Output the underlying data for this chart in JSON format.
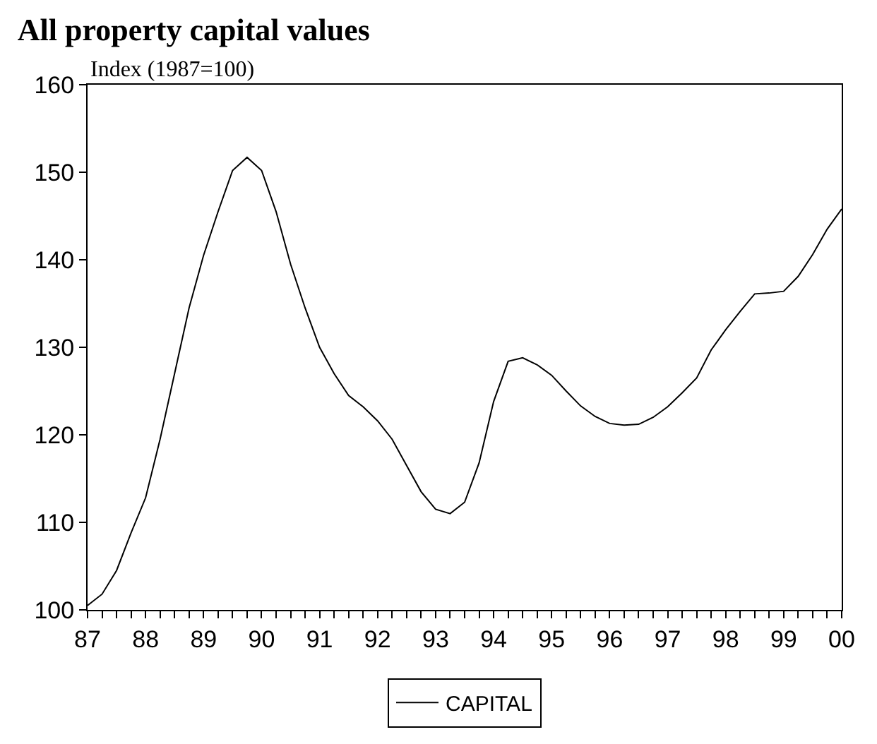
{
  "chart_data": {
    "type": "line",
    "title": "All property capital values",
    "ylabel": "Index (1987=100)",
    "x": [
      1987,
      1987.25,
      1987.5,
      1987.75,
      1988,
      1988.25,
      1988.5,
      1988.75,
      1989,
      1989.25,
      1989.5,
      1989.75,
      1990,
      1990.25,
      1990.5,
      1990.75,
      1991,
      1991.25,
      1991.5,
      1991.75,
      1992,
      1992.25,
      1992.5,
      1992.75,
      1993,
      1993.25,
      1993.5,
      1993.75,
      1994,
      1994.25,
      1994.5,
      1994.75,
      1995,
      1995.25,
      1995.5,
      1995.75,
      1996,
      1996.25,
      1996.5,
      1996.75,
      1997,
      1997.25,
      1997.5,
      1997.75,
      1998,
      1998.25,
      1998.5,
      1998.75,
      1999,
      1999.25,
      1999.5,
      1999.75,
      2000
    ],
    "series": [
      {
        "name": "CAPITAL",
        "color": "#000000",
        "values": [
          100.5,
          101.8,
          104.5,
          108.8,
          112.8,
          119.5,
          127,
          134.5,
          140.5,
          145.5,
          150.2,
          151.7,
          150.2,
          145.5,
          139.5,
          134.5,
          130,
          127,
          124.5,
          123.2,
          121.6,
          119.5,
          116.5,
          113.5,
          111.5,
          111,
          112.3,
          116.8,
          123.8,
          128.4,
          128.8,
          128,
          126.8,
          125,
          123.3,
          122.1,
          121.3,
          121.1,
          121.2,
          122,
          123.2,
          124.8,
          126.5,
          129.7,
          132,
          134.1,
          136.1,
          136.2,
          136.4,
          138.1,
          140.6,
          143.5,
          145.8
        ]
      }
    ],
    "xlim": [
      1987,
      2000
    ],
    "xticks": [
      {
        "value": 1987,
        "label": "87"
      },
      {
        "value": 1988,
        "label": "88"
      },
      {
        "value": 1989,
        "label": "89"
      },
      {
        "value": 1990,
        "label": "90"
      },
      {
        "value": 1991,
        "label": "91"
      },
      {
        "value": 1992,
        "label": "92"
      },
      {
        "value": 1993,
        "label": "93"
      },
      {
        "value": 1994,
        "label": "94"
      },
      {
        "value": 1995,
        "label": "95"
      },
      {
        "value": 1996,
        "label": "96"
      },
      {
        "value": 1997,
        "label": "97"
      },
      {
        "value": 1998,
        "label": "98"
      },
      {
        "value": 1999,
        "label": "99"
      },
      {
        "value": 2000,
        "label": "00"
      }
    ],
    "ylim": [
      100,
      160
    ],
    "yticks": [
      100,
      110,
      120,
      130,
      140,
      150,
      160
    ],
    "legend": "bottom",
    "marker": "none",
    "line_style": "solid"
  }
}
